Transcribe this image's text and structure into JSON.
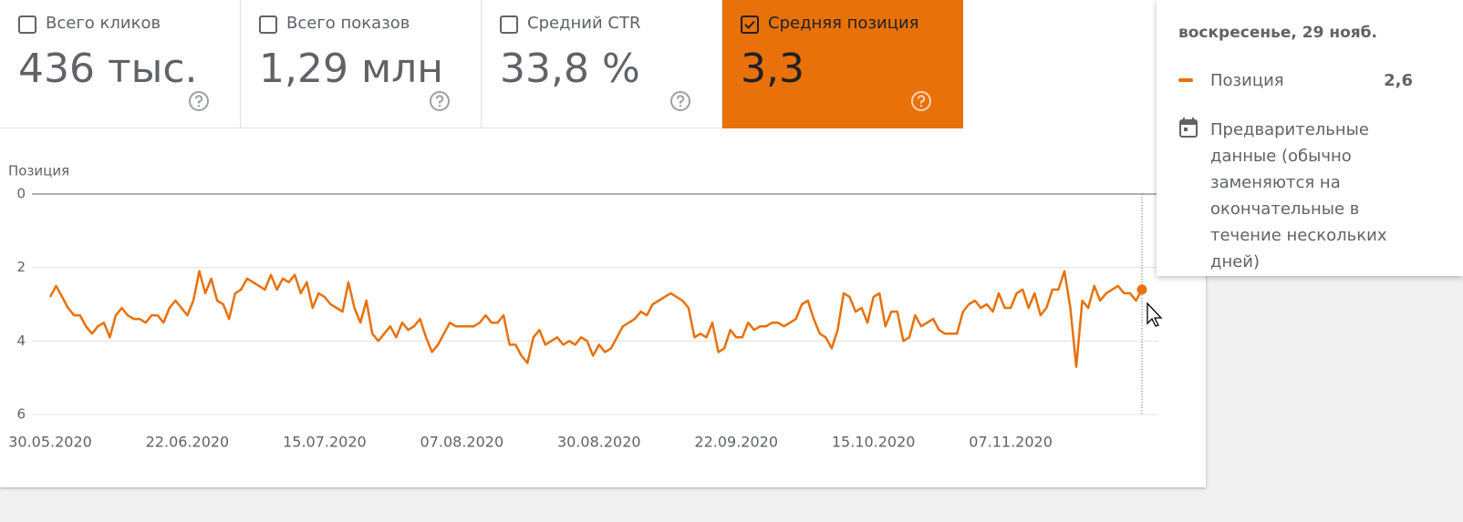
{
  "cards": [
    {
      "label": "Всего кликов",
      "value": "436 тыс.",
      "checked": false
    },
    {
      "label": "Всего показов",
      "value": "1,29 млн",
      "checked": false
    },
    {
      "label": "Средний CTR",
      "value": "33,8 %",
      "checked": false
    },
    {
      "label": "Средняя позиция",
      "value": "3,3",
      "checked": true
    }
  ],
  "chart_data": {
    "type": "line",
    "ylabel": "Позиция",
    "yreverse": true,
    "ylim": [
      0,
      6
    ],
    "yticks": [
      0,
      2,
      4,
      6
    ],
    "grid": true,
    "color": "#e8710a",
    "x": [
      "30.05.2020",
      "31.05.2020",
      "01.06.2020",
      "02.06.2020",
      "03.06.2020",
      "04.06.2020",
      "05.06.2020",
      "06.06.2020",
      "07.06.2020",
      "08.06.2020",
      "09.06.2020",
      "10.06.2020",
      "11.06.2020",
      "12.06.2020",
      "13.06.2020",
      "14.06.2020",
      "15.06.2020",
      "16.06.2020",
      "17.06.2020",
      "18.06.2020",
      "19.06.2020",
      "20.06.2020",
      "21.06.2020",
      "22.06.2020",
      "23.06.2020",
      "24.06.2020",
      "25.06.2020",
      "26.06.2020",
      "27.06.2020",
      "28.06.2020",
      "29.06.2020",
      "30.06.2020",
      "01.07.2020",
      "02.07.2020",
      "03.07.2020",
      "04.07.2020",
      "05.07.2020",
      "06.07.2020",
      "07.07.2020",
      "08.07.2020",
      "09.07.2020",
      "10.07.2020",
      "11.07.2020",
      "12.07.2020",
      "13.07.2020",
      "14.07.2020",
      "15.07.2020",
      "16.07.2020",
      "17.07.2020",
      "18.07.2020",
      "19.07.2020",
      "20.07.2020",
      "21.07.2020",
      "22.07.2020",
      "23.07.2020",
      "24.07.2020",
      "25.07.2020",
      "26.07.2020",
      "27.07.2020",
      "28.07.2020",
      "29.07.2020",
      "30.07.2020",
      "31.07.2020",
      "01.08.2020",
      "02.08.2020",
      "03.08.2020",
      "04.08.2020",
      "05.08.2020",
      "06.08.2020",
      "07.08.2020",
      "08.08.2020",
      "09.08.2020",
      "10.08.2020",
      "11.08.2020",
      "12.08.2020",
      "13.08.2020",
      "14.08.2020",
      "15.08.2020",
      "16.08.2020",
      "17.08.2020",
      "18.08.2020",
      "19.08.2020",
      "20.08.2020",
      "21.08.2020",
      "22.08.2020",
      "23.08.2020",
      "24.08.2020",
      "25.08.2020",
      "26.08.2020",
      "27.08.2020",
      "28.08.2020",
      "29.08.2020",
      "30.08.2020",
      "31.08.2020",
      "01.09.2020",
      "02.09.2020",
      "03.09.2020",
      "04.09.2020",
      "05.09.2020",
      "06.09.2020",
      "07.09.2020",
      "08.09.2020",
      "09.09.2020",
      "10.09.2020",
      "11.09.2020",
      "12.09.2020",
      "13.09.2020",
      "14.09.2020",
      "15.09.2020",
      "16.09.2020",
      "17.09.2020",
      "18.09.2020",
      "19.09.2020",
      "20.09.2020",
      "21.09.2020",
      "22.09.2020",
      "23.09.2020",
      "24.09.2020",
      "25.09.2020",
      "26.09.2020",
      "27.09.2020",
      "28.09.2020",
      "29.09.2020",
      "30.09.2020",
      "01.10.2020",
      "02.10.2020",
      "03.10.2020",
      "04.10.2020",
      "05.10.2020",
      "06.10.2020",
      "07.10.2020",
      "08.10.2020",
      "09.10.2020",
      "10.10.2020",
      "11.10.2020",
      "12.10.2020",
      "13.10.2020",
      "14.10.2020",
      "15.10.2020",
      "16.10.2020",
      "17.10.2020",
      "18.10.2020",
      "19.10.2020",
      "20.10.2020",
      "21.10.2020",
      "22.10.2020",
      "23.10.2020",
      "24.10.2020",
      "25.10.2020",
      "26.10.2020",
      "27.10.2020",
      "28.10.2020",
      "29.10.2020",
      "30.10.2020",
      "31.10.2020",
      "01.11.2020",
      "02.11.2020",
      "03.11.2020",
      "04.11.2020",
      "05.11.2020",
      "06.11.2020",
      "07.11.2020",
      "08.11.2020",
      "09.11.2020",
      "10.11.2020",
      "11.11.2020",
      "12.11.2020",
      "13.11.2020",
      "14.11.2020",
      "15.11.2020",
      "16.11.2020",
      "17.11.2020",
      "18.11.2020",
      "19.11.2020",
      "20.11.2020",
      "21.11.2020",
      "22.11.2020",
      "23.11.2020",
      "24.11.2020",
      "25.11.2020",
      "26.11.2020",
      "27.11.2020",
      "28.11.2020",
      "29.11.2020"
    ],
    "xticks": [
      "30.05.2020",
      "22.06.2020",
      "15.07.2020",
      "07.08.2020",
      "30.08.2020",
      "22.09.2020",
      "15.10.2020",
      "07.11.2020"
    ],
    "values": [
      2.8,
      2.5,
      2.8,
      3.1,
      3.3,
      3.3,
      3.6,
      3.8,
      3.6,
      3.5,
      3.9,
      3.3,
      3.1,
      3.3,
      3.4,
      3.4,
      3.5,
      3.3,
      3.3,
      3.5,
      3.1,
      2.9,
      3.1,
      3.3,
      2.9,
      2.1,
      2.7,
      2.3,
      2.9,
      3.0,
      3.4,
      2.7,
      2.6,
      2.3,
      2.4,
      2.5,
      2.6,
      2.2,
      2.6,
      2.3,
      2.4,
      2.2,
      2.7,
      2.4,
      3.1,
      2.7,
      2.8,
      3.0,
      3.1,
      3.2,
      2.4,
      3.1,
      3.5,
      2.9,
      3.8,
      4.0,
      3.8,
      3.6,
      3.9,
      3.5,
      3.7,
      3.6,
      3.4,
      3.9,
      4.3,
      4.1,
      3.8,
      3.5,
      3.6,
      3.6,
      3.6,
      3.6,
      3.5,
      3.3,
      3.5,
      3.5,
      3.3,
      4.1,
      4.1,
      4.4,
      4.6,
      3.9,
      3.7,
      4.1,
      4.0,
      3.9,
      4.1,
      4.0,
      4.1,
      3.9,
      4.0,
      4.4,
      4.1,
      4.3,
      4.2,
      3.9,
      3.6,
      3.5,
      3.4,
      3.2,
      3.3,
      3.0,
      2.9,
      2.8,
      2.7,
      2.8,
      2.9,
      3.1,
      3.9,
      3.8,
      3.9,
      3.5,
      4.3,
      4.2,
      3.7,
      3.9,
      3.9,
      3.5,
      3.7,
      3.6,
      3.6,
      3.5,
      3.5,
      3.6,
      3.5,
      3.4,
      3.0,
      2.9,
      3.4,
      3.8,
      3.9,
      4.2,
      3.7,
      2.7,
      2.8,
      3.2,
      3.1,
      3.5,
      2.8,
      2.7,
      3.6,
      3.2,
      3.2,
      4.0,
      3.9,
      3.3,
      3.6,
      3.5,
      3.4,
      3.7,
      3.8,
      3.8,
      3.8,
      3.2,
      3.0,
      2.9,
      3.1,
      3.0,
      3.2,
      2.7,
      3.1,
      3.1,
      2.7,
      2.6,
      3.1,
      2.7,
      3.3,
      3.1,
      2.6,
      2.6,
      2.1,
      3.1,
      4.7,
      2.9,
      3.1,
      2.5,
      2.9,
      2.7,
      2.6,
      2.5,
      2.7,
      2.7,
      2.9,
      2.6
    ]
  },
  "tooltip": {
    "date": "воскресенье, 29 нояб.",
    "series": "Позиция",
    "value": "2,6",
    "note": "Предварительные данные (обычно заменяются на окончательные в течение нескольких дней)"
  }
}
